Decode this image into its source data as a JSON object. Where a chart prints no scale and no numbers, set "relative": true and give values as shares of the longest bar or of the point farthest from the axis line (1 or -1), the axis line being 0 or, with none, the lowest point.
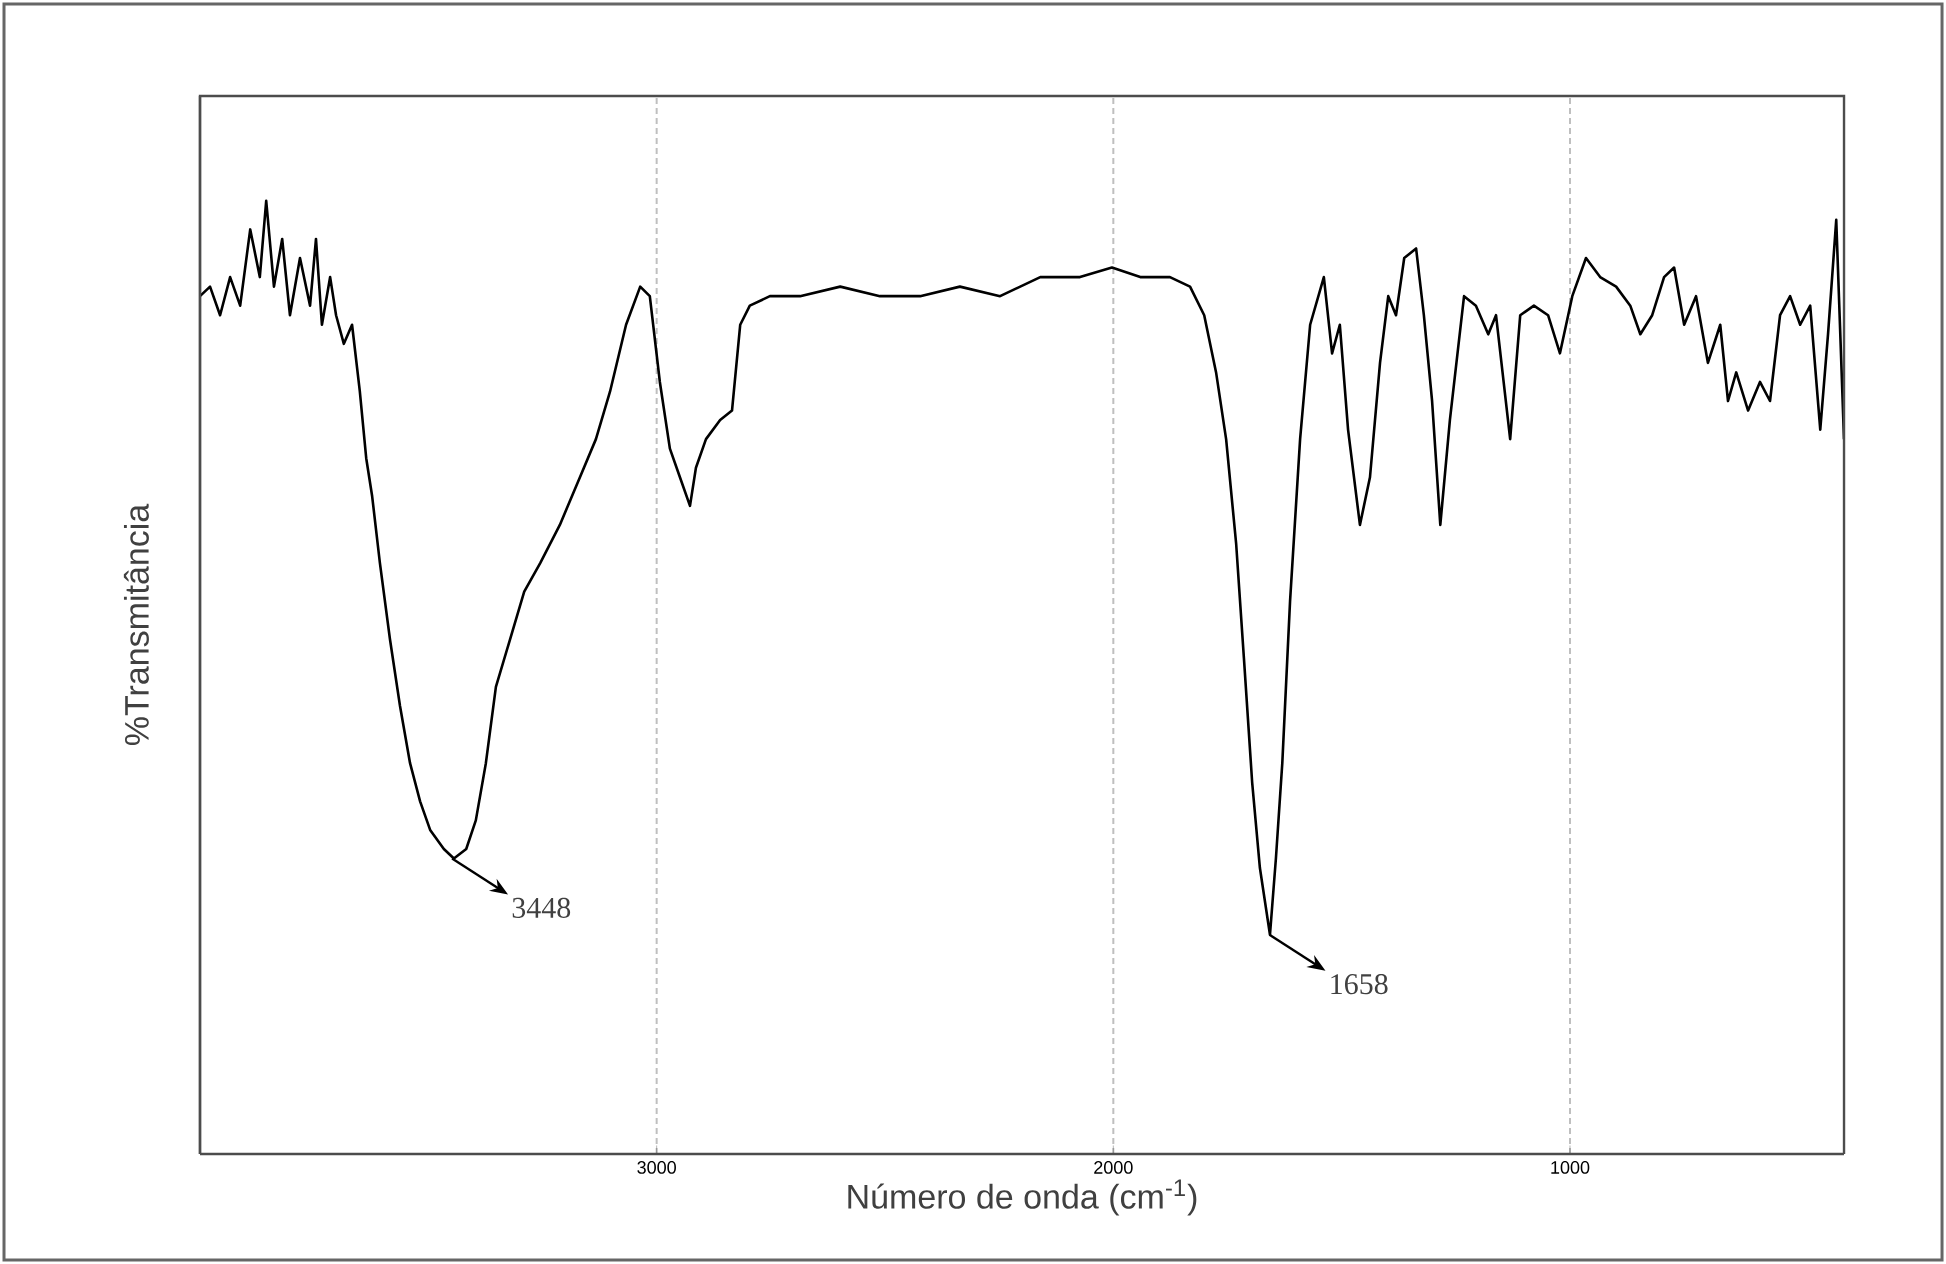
{
  "chart_data": {
    "type": "line",
    "relative": true,
    "xlabel": "Número de onda (cm$^{-1}$)",
    "ylabel": "%Transmitância",
    "xlim": [
      4000,
      400
    ],
    "xticks": [
      3000,
      2000,
      1000
    ],
    "grid": "x",
    "color": "#000000",
    "annotations": [
      {
        "text": "3448",
        "x": 3448,
        "y": 0.31
      },
      {
        "text": "1658",
        "x": 1658,
        "y": 0.23
      }
    ],
    "x": [
      4000,
      3978,
      3956,
      3934,
      3912,
      3890,
      3869,
      3855,
      3838,
      3820,
      3803,
      3781,
      3759,
      3746,
      3733,
      3715,
      3702,
      3685,
      3667,
      3650,
      3636,
      3623,
      3606,
      3584,
      3562,
      3540,
      3518,
      3496,
      3466,
      3444,
      3417,
      3396,
      3374,
      3352,
      3321,
      3290,
      3255,
      3212,
      3168,
      3133,
      3102,
      3067,
      3036,
      3015,
      2993,
      2971,
      2949,
      2927,
      2914,
      2892,
      2861,
      2835,
      2817,
      2796,
      2752,
      2686,
      2598,
      2511,
      2423,
      2336,
      2248,
      2160,
      2073,
      2003,
      1941,
      1876,
      1832,
      1801,
      1775,
      1753,
      1731,
      1714,
      1696,
      1679,
      1657,
      1644,
      1630,
      1613,
      1591,
      1569,
      1539,
      1521,
      1504,
      1486,
      1460,
      1438,
      1416,
      1398,
      1381,
      1363,
      1337,
      1320,
      1302,
      1284,
      1263,
      1232,
      1206,
      1179,
      1162,
      1131,
      1109,
      1079,
      1048,
      1022,
      995,
      965,
      934,
      899,
      868,
      846,
      820,
      794,
      772,
      750,
      724,
      698,
      671,
      654,
      636,
      610,
      584,
      562,
      540,
      518,
      496,
      474,
      452,
      435,
      417,
      400
    ],
    "values": [
      0.9,
      0.91,
      0.88,
      0.92,
      0.89,
      0.97,
      0.92,
      1.0,
      0.91,
      0.96,
      0.88,
      0.94,
      0.89,
      0.96,
      0.87,
      0.92,
      0.88,
      0.85,
      0.87,
      0.8,
      0.73,
      0.69,
      0.62,
      0.54,
      0.47,
      0.41,
      0.37,
      0.34,
      0.32,
      0.31,
      0.32,
      0.35,
      0.41,
      0.49,
      0.54,
      0.59,
      0.62,
      0.66,
      0.71,
      0.75,
      0.8,
      0.87,
      0.91,
      0.9,
      0.81,
      0.74,
      0.71,
      0.68,
      0.72,
      0.75,
      0.77,
      0.78,
      0.87,
      0.89,
      0.9,
      0.9,
      0.91,
      0.9,
      0.9,
      0.91,
      0.9,
      0.92,
      0.92,
      0.93,
      0.92,
      0.92,
      0.91,
      0.88,
      0.82,
      0.75,
      0.64,
      0.52,
      0.39,
      0.3,
      0.23,
      0.31,
      0.41,
      0.58,
      0.75,
      0.87,
      0.92,
      0.84,
      0.87,
      0.76,
      0.66,
      0.71,
      0.83,
      0.9,
      0.88,
      0.94,
      0.95,
      0.88,
      0.79,
      0.66,
      0.77,
      0.9,
      0.89,
      0.86,
      0.88,
      0.75,
      0.88,
      0.89,
      0.88,
      0.84,
      0.9,
      0.94,
      0.92,
      0.91,
      0.89,
      0.86,
      0.88,
      0.92,
      0.93,
      0.87,
      0.9,
      0.83,
      0.87,
      0.79,
      0.82,
      0.78,
      0.81,
      0.79,
      0.88,
      0.9,
      0.87,
      0.89,
      0.76,
      0.86,
      0.98,
      0.75
    ]
  }
}
